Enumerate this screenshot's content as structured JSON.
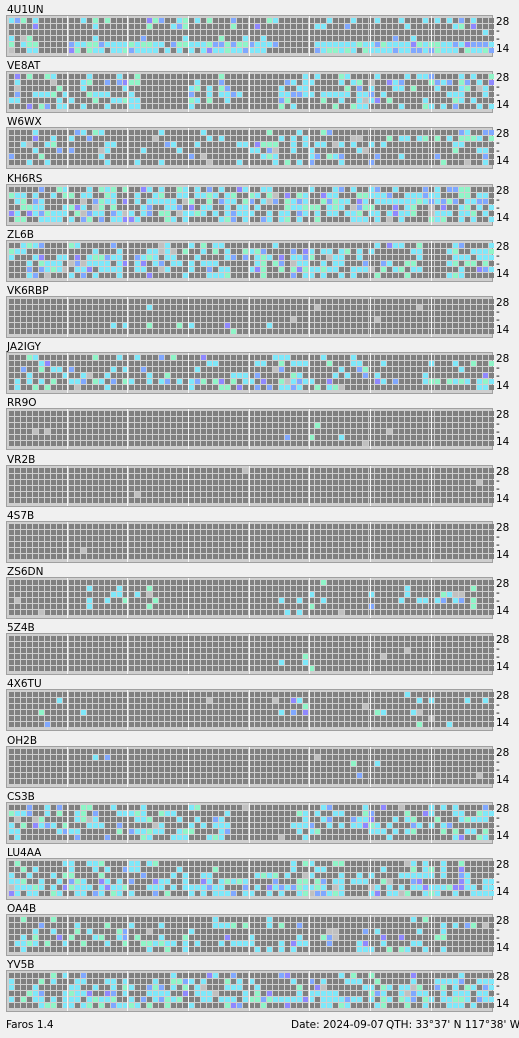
{
  "scale": {
    "top": "28",
    "mid_marks": [
      "-",
      "-"
    ],
    "bottom": "14"
  },
  "status": {
    "app_version": "Faros 1.4",
    "date": "Date: 2024-09-07",
    "qth": "QTH: 33°37' N  117°38' W"
  },
  "colors": {
    "background": "#f0f0f0",
    "panel_border": "#a0a0a0",
    "no_signal": "#808080",
    "weak": "#c0c0c0",
    "cyan": "#7ee8fa",
    "blue": "#80a8ff",
    "violet": "#8f88ff",
    "green": "#8ff5c8"
  },
  "beacons": [
    {
      "callsign": "4U1UN",
      "activity": [
        0.35,
        0.15,
        0.05,
        0.15,
        0.95,
        0.85
      ],
      "segments": [
        [
          0.0,
          0.06
        ],
        [
          0.12,
          0.55
        ],
        [
          0.62,
          1.0
        ]
      ]
    },
    {
      "callsign": "VE8AT",
      "activity": [
        0.3,
        0.35,
        0.25,
        0.45,
        0.45,
        0.4
      ],
      "segments": [
        [
          0.0,
          0.27
        ],
        [
          0.36,
          0.47
        ],
        [
          0.55,
          1.0
        ]
      ]
    },
    {
      "callsign": "W6WX",
      "activity": [
        0.15,
        0.3,
        0.3,
        0.3,
        0.2,
        0.15
      ],
      "segments": [
        [
          0.0,
          1.0
        ]
      ]
    },
    {
      "callsign": "KH6RS",
      "activity": [
        0.35,
        0.55,
        0.75,
        0.45,
        0.75,
        0.5
      ],
      "segments": [
        [
          0.0,
          1.0
        ]
      ]
    },
    {
      "callsign": "ZL6B",
      "activity": [
        0.3,
        0.45,
        0.55,
        0.55,
        0.6,
        0.35
      ],
      "segments": [
        [
          0.0,
          0.85
        ],
        [
          0.9,
          1.0
        ]
      ]
    },
    {
      "callsign": "VK6RBP",
      "activity": [
        0.02,
        0.05,
        0.05,
        0.1,
        0.35,
        0.05
      ],
      "segments": [
        [
          0.2,
          0.55
        ]
      ]
    },
    {
      "callsign": "JA2IGY",
      "activity": [
        0.15,
        0.2,
        0.25,
        0.3,
        0.55,
        0.2
      ],
      "segments": [
        [
          0.0,
          0.8
        ],
        [
          0.85,
          1.0
        ]
      ]
    },
    {
      "callsign": "RR9O",
      "activity": [
        0.02,
        0.02,
        0.04,
        0.08,
        0.08,
        0.02
      ],
      "segments": [
        [
          0.5,
          0.68
        ]
      ]
    },
    {
      "callsign": "VR2B",
      "activity": [
        0.0,
        0.0,
        0.0,
        0.02,
        0.0,
        0.02
      ],
      "segments": [
        [
          0.6,
          0.68
        ]
      ]
    },
    {
      "callsign": "4S7B",
      "activity": [
        0.0,
        0.0,
        0.0,
        0.0,
        0.02,
        0.0
      ],
      "segments": [
        [
          0.78,
          0.82
        ]
      ]
    },
    {
      "callsign": "ZS6DN",
      "activity": [
        0.05,
        0.1,
        0.2,
        0.25,
        0.2,
        0.05
      ],
      "segments": [
        [
          0.15,
          0.3
        ],
        [
          0.55,
          0.65
        ],
        [
          0.74,
          0.98
        ]
      ]
    },
    {
      "callsign": "5Z4B",
      "activity": [
        0.02,
        0.02,
        0.05,
        0.1,
        0.1,
        0.05
      ],
      "segments": [
        [
          0.15,
          0.2
        ],
        [
          0.55,
          0.62
        ]
      ]
    },
    {
      "callsign": "4X6TU",
      "activity": [
        0.02,
        0.05,
        0.05,
        0.15,
        0.15,
        0.05
      ],
      "segments": [
        [
          0.02,
          0.15
        ],
        [
          0.55,
          0.65
        ],
        [
          0.74,
          0.98
        ]
      ]
    },
    {
      "callsign": "OH2B",
      "activity": [
        0.02,
        0.02,
        0.02,
        0.05,
        0.05,
        0.02
      ],
      "segments": [
        [
          0.1,
          0.25
        ],
        [
          0.7,
          0.85
        ]
      ]
    },
    {
      "callsign": "CS3B",
      "activity": [
        0.2,
        0.4,
        0.5,
        0.55,
        0.45,
        0.25
      ],
      "segments": [
        [
          0.0,
          0.45
        ],
        [
          0.58,
          1.0
        ]
      ]
    },
    {
      "callsign": "LU4AA",
      "activity": [
        0.25,
        0.25,
        0.4,
        0.5,
        0.75,
        0.55
      ],
      "segments": [
        [
          0.0,
          1.0
        ]
      ]
    },
    {
      "callsign": "OA4B",
      "activity": [
        0.1,
        0.15,
        0.2,
        0.35,
        0.4,
        0.25
      ],
      "segments": [
        [
          0.0,
          1.0
        ]
      ]
    },
    {
      "callsign": "YV5B",
      "activity": [
        0.2,
        0.45,
        0.45,
        0.5,
        0.75,
        0.45
      ],
      "segments": [
        [
          0.0,
          1.0
        ]
      ]
    }
  ]
}
